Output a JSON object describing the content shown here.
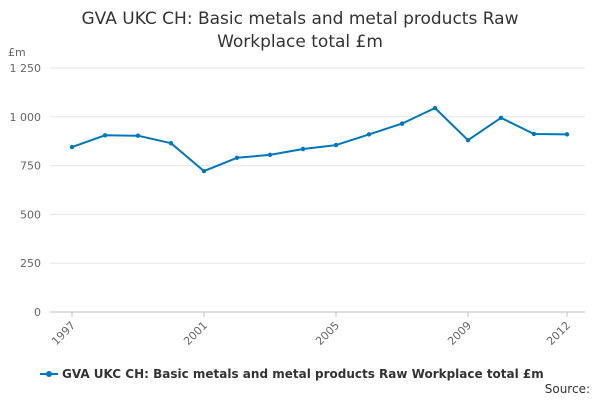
{
  "chart_data": {
    "type": "line",
    "title": "GVA UKC CH: Basic metals and metal products Raw Workplace total £m",
    "ylabel": "£m",
    "xlabel": "",
    "x": [
      1997,
      1998,
      1999,
      2000,
      2001,
      2002,
      2003,
      2004,
      2005,
      2006,
      2007,
      2008,
      2009,
      2010,
      2011,
      2012
    ],
    "x_tick_labels": [
      "1997",
      "2001",
      "2005",
      "2009",
      "2012"
    ],
    "x_ticks": [
      1997,
      2001,
      2005,
      2009,
      2012
    ],
    "y_ticks": [
      0,
      250,
      500,
      750,
      1000,
      1250
    ],
    "y_tick_labels": [
      "0",
      "250",
      "500",
      "750",
      "1 000",
      "1 250"
    ],
    "ylim": [
      0,
      1250
    ],
    "xlim": [
      1997,
      2012
    ],
    "grid": "horizontal",
    "legend_position": "bottom-left",
    "series": [
      {
        "name": "GVA UKC CH: Basic metals and metal products Raw Workplace total £m",
        "color": "#0077bb",
        "values": [
          845,
          905,
          903,
          865,
          722,
          790,
          805,
          835,
          855,
          910,
          965,
          1045,
          880,
          995,
          912,
          910
        ]
      }
    ],
    "source_label": "Source:"
  }
}
